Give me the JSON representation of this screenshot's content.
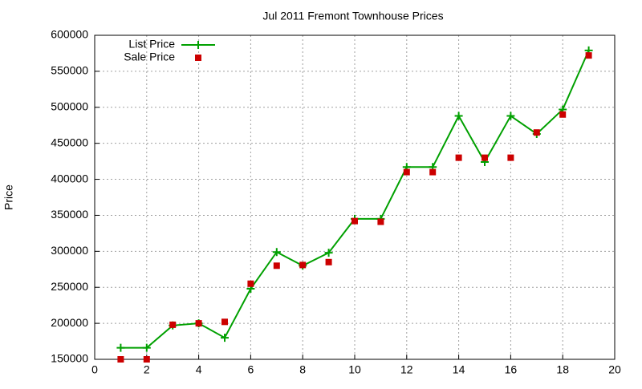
{
  "chart_data": {
    "type": "line",
    "title": "Jul 2011 Fremont Townhouse Prices",
    "y_label": "Price",
    "x": [
      1,
      2,
      3,
      4,
      5,
      6,
      7,
      8,
      9,
      10,
      11,
      12,
      13,
      14,
      15,
      16,
      17,
      18,
      19
    ],
    "series": [
      {
        "name": "List Price",
        "color": "#00a000",
        "line": true,
        "marker": "plus",
        "values": [
          166000,
          166000,
          197000,
          200000,
          180000,
          248000,
          299000,
          280000,
          298000,
          345000,
          345000,
          417000,
          417000,
          488000,
          424000,
          488000,
          463000,
          497000,
          579000
        ]
      },
      {
        "name": "Sale Price",
        "color": "#cc0000",
        "line": false,
        "marker": "square",
        "values": [
          150000,
          150000,
          198000,
          200000,
          202000,
          255000,
          280000,
          281000,
          285000,
          342000,
          341000,
          410000,
          410000,
          430000,
          430000,
          430000,
          465000,
          490000,
          572000
        ]
      }
    ],
    "xlim": [
      0,
      20
    ],
    "xticks": [
      0,
      2,
      4,
      6,
      8,
      10,
      12,
      14,
      16,
      18,
      20
    ],
    "ylim": [
      150000,
      600000
    ],
    "yticks": [
      150000,
      200000,
      250000,
      300000,
      350000,
      400000,
      450000,
      500000,
      550000,
      600000
    ],
    "grid": true,
    "legend": "top-left"
  }
}
